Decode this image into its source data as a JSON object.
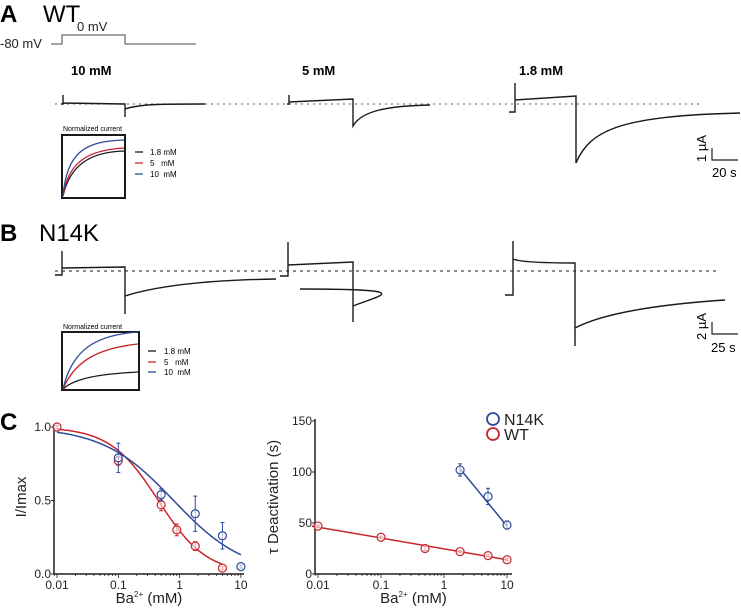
{
  "panels": {
    "A": {
      "letter": "A",
      "title": "WT",
      "protocol": {
        "holding": "-80 mV",
        "step": "0 mV"
      },
      "conditions": [
        "10 mM",
        "5 mM",
        "1.8 mM"
      ],
      "scalebar": {
        "y": "1 µA",
        "x": "20 s"
      },
      "inset": {
        "title": "Normalized current",
        "legend": [
          {
            "label": "1.8 mM",
            "color": "#1a1a1a"
          },
          {
            "label": "5   mM",
            "color": "#c8252c"
          },
          {
            "label": "10  mM",
            "color": "#2e4a9a"
          }
        ]
      }
    },
    "B": {
      "letter": "B",
      "title": "N14K",
      "scalebar": {
        "y": "2 µA",
        "x": "25 s"
      },
      "inset": {
        "title": "Normalized current",
        "legend": [
          {
            "label": "1.8 mM",
            "color": "#1a1a1a"
          },
          {
            "label": "5   mM",
            "color": "#c8252c"
          },
          {
            "label": "10  mM",
            "color": "#2e4a9a"
          }
        ]
      }
    },
    "C": {
      "letter": "C"
    }
  },
  "colors": {
    "wt": "#c8252c",
    "n14k": "#2e4a9a",
    "trace": "#1a1a1a",
    "protocol": "#6d6e71"
  },
  "chart_data": [
    {
      "type": "scatter",
      "title": "",
      "xlabel": "Ba2+ (mM)",
      "xlabel_base": "Ba",
      "xlabel_sup": "2+",
      "xlabel_rest": " (mM)",
      "ylabel": "I/Imax",
      "xscale": "log",
      "xlim": [
        0.008,
        12
      ],
      "ylim": [
        0,
        1.05
      ],
      "xticks": [
        0.01,
        0.1,
        1,
        10
      ],
      "xtick_labels": [
        "0.01",
        "0.1",
        "1",
        "10"
      ],
      "yticks": [
        0,
        0.5,
        1.0
      ],
      "ytick_labels": [
        "0.0",
        "0.5",
        "1.0"
      ],
      "grid": false,
      "series": [
        {
          "name": "WT",
          "color": "#c8252c",
          "x": [
            0.01,
            0.1,
            0.5,
            0.9,
            1.8,
            5
          ],
          "y": [
            1.0,
            0.77,
            0.47,
            0.3,
            0.19,
            0.04
          ],
          "err": [
            0.01,
            0.03,
            0.04,
            0.04,
            0.03,
            0.01
          ],
          "fit": {
            "type": "hill",
            "ic50": 0.45,
            "n": 1.1,
            "xrange": [
              0.01,
              5
            ]
          }
        },
        {
          "name": "N14K",
          "color": "#2e4a9a",
          "x": [
            0.1,
            0.5,
            1.8,
            5,
            10
          ],
          "y": [
            0.79,
            0.54,
            0.41,
            0.26,
            0.05
          ],
          "err": [
            0.1,
            0.04,
            0.12,
            0.09,
            0.01
          ],
          "fit": {
            "type": "hill",
            "ic50": 0.8,
            "n": 0.75,
            "xrange": [
              0.01,
              10
            ]
          }
        }
      ]
    },
    {
      "type": "scatter",
      "title": "",
      "xlabel": "Ba2+ (mM)",
      "xlabel_base": "Ba",
      "xlabel_sup": "2+",
      "xlabel_rest": " (mM)",
      "ylabel": "τ Deactivation (s)",
      "xscale": "log",
      "xlim": [
        0.008,
        12
      ],
      "ylim": [
        0,
        150
      ],
      "xticks": [
        0.01,
        0.1,
        1,
        10
      ],
      "xtick_labels": [
        "0.01",
        "0.1",
        "1",
        "10"
      ],
      "yticks": [
        0,
        50,
        100,
        150
      ],
      "ytick_labels": [
        "0",
        "50",
        "100",
        "150"
      ],
      "grid": false,
      "legend": {
        "position": "top-right",
        "entries": [
          "N14K",
          "WT"
        ]
      },
      "series": [
        {
          "name": "N14K",
          "color": "#2e4a9a",
          "x": [
            1.8,
            5,
            10
          ],
          "y": [
            102,
            76,
            48
          ],
          "err": [
            6,
            8,
            4
          ],
          "fit": {
            "type": "loglinear",
            "xrange": [
              1.8,
              10
            ],
            "y_at": [
              103,
              47
            ]
          }
        },
        {
          "name": "WT",
          "color": "#c8252c",
          "x": [
            0.01,
            0.1,
            0.5,
            1.8,
            5,
            10
          ],
          "y": [
            47,
            36,
            25,
            22,
            18,
            14
          ],
          "err": [
            1,
            1,
            2,
            1,
            1,
            1
          ],
          "fit": {
            "type": "loglinear",
            "xrange": [
              0.008,
              10
            ],
            "y_at": [
              47,
              14
            ]
          }
        }
      ]
    }
  ]
}
